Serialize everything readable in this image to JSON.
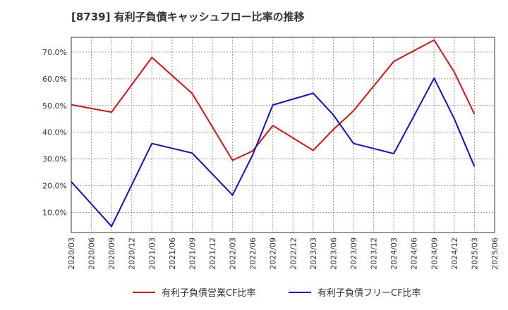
{
  "chart_data": {
    "type": "line",
    "title": "[8739]  有利子負債キャッシュフロー比率の推移",
    "xlabel": "",
    "ylabel": "",
    "x_ticks": [
      "2020/03",
      "2020/06",
      "2020/09",
      "2020/12",
      "2021/03",
      "2021/06",
      "2021/09",
      "2021/12",
      "2022/03",
      "2022/06",
      "2022/09",
      "2022/12",
      "2023/03",
      "2023/06",
      "2023/09",
      "2023/12",
      "2024/03",
      "2024/06",
      "2024/09",
      "2024/12",
      "2025/03",
      "2025/06"
    ],
    "y_ticks": [
      "10.0%",
      "20.0%",
      "30.0%",
      "40.0%",
      "50.0%",
      "60.0%",
      "70.0%"
    ],
    "y_tick_values": [
      10,
      20,
      30,
      40,
      50,
      60,
      70
    ],
    "ylim": [
      2.5,
      75.5
    ],
    "grid": true,
    "legend_position": "bottom",
    "series": [
      {
        "name": "有利子負債営業CF比率",
        "color": "#dd1111",
        "points": [
          {
            "x": "2020/03",
            "y": 50.3
          },
          {
            "x": "2020/09",
            "y": 47.5
          },
          {
            "x": "2021/03",
            "y": 68.0
          },
          {
            "x": "2021/09",
            "y": 54.5
          },
          {
            "x": "2022/03",
            "y": 29.5
          },
          {
            "x": "2022/06",
            "y": 33.0
          },
          {
            "x": "2022/09",
            "y": 42.5
          },
          {
            "x": "2023/03",
            "y": 33.2
          },
          {
            "x": "2023/06",
            "y": 41.0
          },
          {
            "x": "2023/09",
            "y": 48.0
          },
          {
            "x": "2024/03",
            "y": 66.5
          },
          {
            "x": "2024/09",
            "y": 74.5
          },
          {
            "x": "2024/12",
            "y": 62.5
          },
          {
            "x": "2025/03",
            "y": 46.8
          }
        ]
      },
      {
        "name": "有利子負債フリーCF比率",
        "color": "#1111cc",
        "points": [
          {
            "x": "2020/03",
            "y": 21.5
          },
          {
            "x": "2020/09",
            "y": 4.8
          },
          {
            "x": "2021/03",
            "y": 35.8
          },
          {
            "x": "2021/09",
            "y": 32.2
          },
          {
            "x": "2022/03",
            "y": 16.5
          },
          {
            "x": "2022/06",
            "y": 31.5
          },
          {
            "x": "2022/09",
            "y": 50.2
          },
          {
            "x": "2023/03",
            "y": 54.6
          },
          {
            "x": "2023/06",
            "y": 46.5
          },
          {
            "x": "2023/09",
            "y": 35.8
          },
          {
            "x": "2024/03",
            "y": 32.0
          },
          {
            "x": "2024/09",
            "y": 60.2
          },
          {
            "x": "2024/12",
            "y": 45.0
          },
          {
            "x": "2025/03",
            "y": 27.2
          }
        ]
      }
    ]
  }
}
